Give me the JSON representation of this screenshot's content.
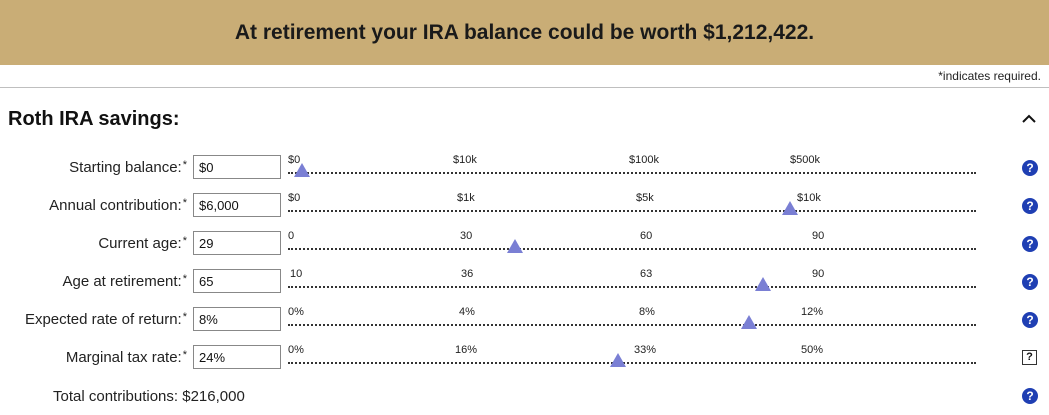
{
  "banner": {
    "message": "At retirement your IRA balance could be worth $1,212,422."
  },
  "required_note": "*indicates required.",
  "section": {
    "title": "Roth IRA savings:",
    "collapse_icon": "chevron-up-icon"
  },
  "rows": [
    {
      "label": "Starting balance:",
      "star": "*",
      "value": "$0",
      "ticks": [
        "$0",
        "$10k",
        "$100k",
        "$500k"
      ],
      "slider_position": 0.02,
      "help_icon": "help-icon"
    },
    {
      "label": "Annual contribution:",
      "star": "*",
      "value": "$6,000",
      "ticks": [
        "$0",
        "$1k",
        "$5k",
        "$10k"
      ],
      "slider_position": 0.73,
      "help_icon": "help-icon"
    },
    {
      "label": "Current age:",
      "star": "*",
      "value": "29",
      "ticks": [
        "0",
        "30",
        "60",
        "90"
      ],
      "slider_position": 0.33,
      "help_icon": "help-icon"
    },
    {
      "label": "Age at retirement:",
      "star": "*",
      "value": "65",
      "ticks": [
        "10",
        "36",
        "63",
        "90"
      ],
      "slider_position": 0.69,
      "help_icon": "help-icon"
    },
    {
      "label": "Expected rate of return:",
      "star": "*",
      "value": "8%",
      "ticks": [
        "0%",
        "4%",
        "8%",
        "12%"
      ],
      "slider_position": 0.67,
      "help_icon": "help-icon"
    },
    {
      "label": "Marginal tax rate:",
      "star": "*",
      "value": "24%",
      "ticks": [
        "0%",
        "16%",
        "33%",
        "50%"
      ],
      "slider_position": 0.48,
      "help_icon": "help-square-icon"
    }
  ],
  "total": {
    "text": "Total contributions: $216,000",
    "help_icon": "help-icon"
  },
  "colors": {
    "banner": "#c9ad76",
    "help": "#1f3fb3",
    "thumb": "#7a7fd4"
  },
  "help_glyph": "?"
}
